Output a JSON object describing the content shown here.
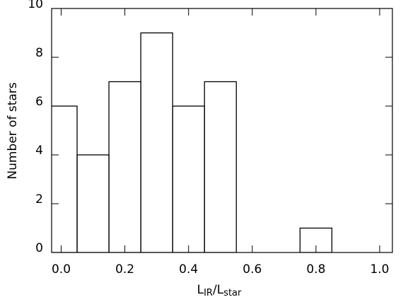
{
  "chart_data": {
    "type": "histogram",
    "xlabel": [
      "L",
      "IR",
      "/",
      "L",
      "star"
    ],
    "ylabel": "Number of stars",
    "bins": [
      -0.05,
      0.05,
      0.15,
      0.25,
      0.35,
      0.45,
      0.55,
      0.65,
      0.75,
      0.85
    ],
    "values": [
      6,
      4,
      7,
      9,
      6,
      7,
      0,
      0,
      1
    ],
    "color": "#000000",
    "xlim": [
      -0.03,
      1.04
    ],
    "xticks": [
      {
        "value": 0,
        "label": "0.0"
      },
      {
        "value": 0.2,
        "label": "0.2"
      },
      {
        "value": 0.4,
        "label": "0.4"
      },
      {
        "value": 0.6,
        "label": "0.6"
      },
      {
        "value": 0.8,
        "label": "0.8"
      },
      {
        "value": 1,
        "label": "1.0"
      }
    ],
    "ylim": [
      0,
      10
    ],
    "yticks": [
      0,
      2,
      4,
      6,
      8,
      10
    ]
  }
}
